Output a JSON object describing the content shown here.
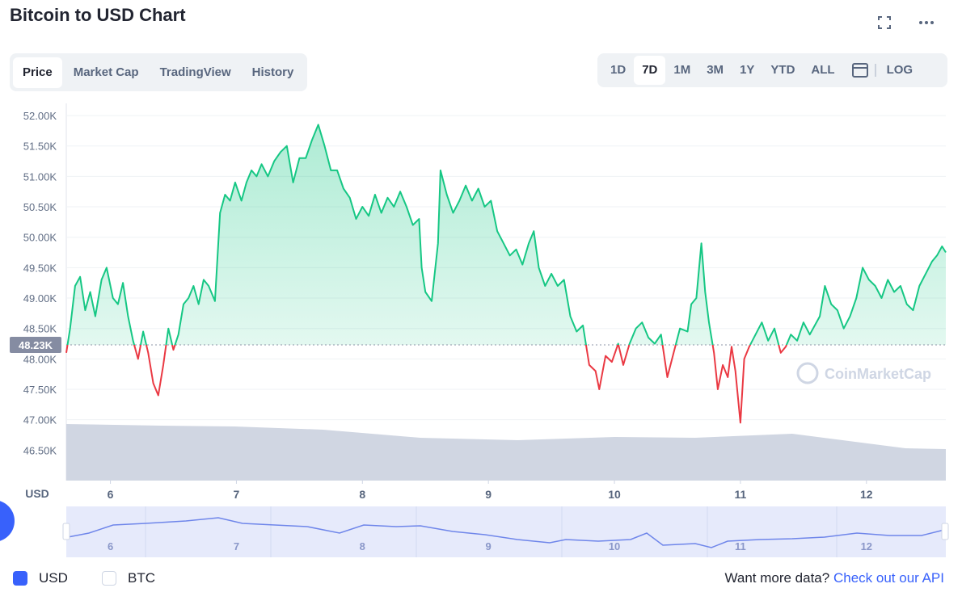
{
  "header": {
    "title": "Bitcoin to USD Chart"
  },
  "tabs": [
    "Price",
    "Market Cap",
    "TradingView",
    "History"
  ],
  "ranges": [
    "1D",
    "7D",
    "1M",
    "3M",
    "1Y",
    "YTD",
    "ALL",
    "LOG"
  ],
  "chart_data": {
    "type": "line",
    "ylabel": "USD",
    "watermark": "CoinMarketCap",
    "reference": {
      "value": 48230,
      "label": "48.23K"
    },
    "xlim": [
      5.65,
      12.63
    ],
    "xticks": [
      6,
      7,
      8,
      9,
      10,
      11,
      12
    ],
    "ylim": [
      46000,
      52200
    ],
    "yticks": [
      {
        "value": 46500,
        "label": "46.50K"
      },
      {
        "value": 47000,
        "label": "47.00K"
      },
      {
        "value": 47500,
        "label": "47.50K"
      },
      {
        "value": 48000,
        "label": "48.00K"
      },
      {
        "value": 48500,
        "label": "48.50K"
      },
      {
        "value": 49000,
        "label": "49.00K"
      },
      {
        "value": 49500,
        "label": "49.50K"
      },
      {
        "value": 50000,
        "label": "50.00K"
      },
      {
        "value": 50500,
        "label": "50.50K"
      },
      {
        "value": 51000,
        "label": "51.00K"
      },
      {
        "value": 51500,
        "label": "51.50K"
      },
      {
        "value": 52000,
        "label": "52.00K"
      }
    ],
    "grid": true,
    "colors": {
      "above": "#16c784",
      "below": "#ea3943"
    },
    "x": [
      5.65,
      5.68,
      5.72,
      5.76,
      5.8,
      5.84,
      5.88,
      5.93,
      5.97,
      6.02,
      6.06,
      6.1,
      6.14,
      6.18,
      6.22,
      6.26,
      6.3,
      6.34,
      6.38,
      6.42,
      6.46,
      6.5,
      6.54,
      6.58,
      6.62,
      6.66,
      6.7,
      6.74,
      6.78,
      6.83,
      6.87,
      6.91,
      6.95,
      6.99,
      7.04,
      7.08,
      7.12,
      7.16,
      7.2,
      7.25,
      7.3,
      7.35,
      7.4,
      7.45,
      7.5,
      7.55,
      7.6,
      7.65,
      7.7,
      7.75,
      7.8,
      7.85,
      7.9,
      7.95,
      8.0,
      8.05,
      8.1,
      8.15,
      8.2,
      8.25,
      8.3,
      8.35,
      8.4,
      8.45,
      8.47,
      8.5,
      8.55,
      8.6,
      8.62,
      8.67,
      8.72,
      8.77,
      8.82,
      8.87,
      8.92,
      8.97,
      9.02,
      9.07,
      9.12,
      9.17,
      9.22,
      9.27,
      9.32,
      9.36,
      9.4,
      9.45,
      9.5,
      9.55,
      9.6,
      9.65,
      9.7,
      9.75,
      9.8,
      9.85,
      9.88,
      9.93,
      9.98,
      10.03,
      10.07,
      10.12,
      10.17,
      10.22,
      10.27,
      10.32,
      10.37,
      10.42,
      10.47,
      10.52,
      10.58,
      10.61,
      10.65,
      10.69,
      10.72,
      10.75,
      10.79,
      10.82,
      10.86,
      10.9,
      10.93,
      10.96,
      11.0,
      11.03,
      11.07,
      11.12,
      11.17,
      11.22,
      11.27,
      11.32,
      11.36,
      11.4,
      11.45,
      11.5,
      11.55,
      11.63,
      11.67,
      11.72,
      11.77,
      11.82,
      11.87,
      11.92,
      11.97,
      12.02,
      12.07,
      12.12,
      12.17,
      12.22,
      12.27,
      12.32,
      12.37,
      12.42,
      12.47,
      12.52,
      12.56,
      12.6,
      12.63
    ],
    "values": [
      48100,
      48500,
      49200,
      49350,
      48800,
      49100,
      48700,
      49300,
      49500,
      49000,
      48900,
      49250,
      48700,
      48300,
      48000,
      48450,
      48100,
      47600,
      47400,
      47900,
      48500,
      48150,
      48400,
      48900,
      49000,
      49200,
      48900,
      49300,
      49200,
      48950,
      50400,
      50700,
      50600,
      50900,
      50600,
      50900,
      51100,
      51000,
      51200,
      51000,
      51250,
      51400,
      51500,
      50900,
      51300,
      51300,
      51600,
      51850,
      51500,
      51100,
      51100,
      50800,
      50650,
      50300,
      50500,
      50350,
      50700,
      50400,
      50650,
      50500,
      50750,
      50500,
      50200,
      50300,
      49500,
      49100,
      48950,
      49900,
      51100,
      50700,
      50400,
      50600,
      50850,
      50600,
      50800,
      50500,
      50600,
      50100,
      49900,
      49700,
      49800,
      49550,
      49900,
      50100,
      49500,
      49200,
      49400,
      49200,
      49300,
      48700,
      48450,
      48550,
      47900,
      47800,
      47500,
      48050,
      47950,
      48250,
      47900,
      48250,
      48500,
      48600,
      48350,
      48250,
      48400,
      47700,
      48100,
      48500,
      48450,
      48900,
      49000,
      49900,
      49100,
      48600,
      48100,
      47500,
      47900,
      47700,
      48200,
      47800,
      46950,
      48000,
      48200,
      48400,
      48600,
      48300,
      48500,
      48100,
      48200,
      48400,
      48300,
      48600,
      48400,
      48700,
      49200,
      48900,
      48800,
      48500,
      48700,
      49000,
      49500,
      49300,
      49200,
      49000,
      49300,
      49100,
      49200,
      48900,
      48800,
      49200,
      49400,
      49600,
      49700,
      49850,
      49750
    ]
  },
  "currencies": [
    {
      "label": "USD",
      "checked": true
    },
    {
      "label": "BTC",
      "checked": false
    }
  ],
  "footer": {
    "text": "Want more data?",
    "link": "Check out our API"
  }
}
